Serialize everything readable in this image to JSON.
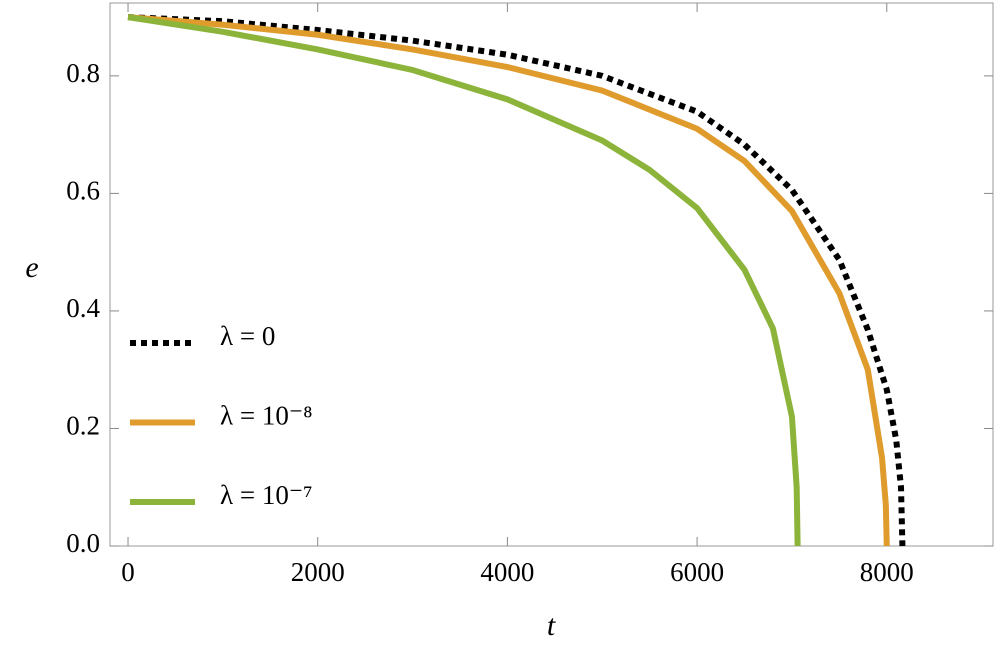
{
  "chart_data": {
    "type": "line",
    "xlabel": "t",
    "ylabel": "e",
    "xlim": [
      -190,
      9120
    ],
    "ylim": [
      0,
      0.924
    ],
    "xticks": [
      0,
      2000,
      4000,
      6000,
      8000
    ],
    "yticks": [
      {
        "value": 0,
        "label": "0.0"
      },
      0.2,
      0.4,
      0.6,
      0.8
    ],
    "legend": "left",
    "series": [
      {
        "name": "λ = 0",
        "color": "#000000",
        "dashed": true,
        "x": [
          0,
          1000,
          2000,
          3000,
          4000,
          5000,
          6000,
          6500,
          7000,
          7500,
          7800,
          8000,
          8100,
          8150,
          8165
        ],
        "values": [
          0.9,
          0.893,
          0.878,
          0.86,
          0.836,
          0.8,
          0.739,
          0.683,
          0.606,
          0.487,
          0.368,
          0.266,
          0.18,
          0.1,
          0
        ]
      },
      {
        "name": "λ = 10⁻⁸",
        "color": "#e09b2d",
        "dashed": false,
        "x": [
          0,
          1000,
          2000,
          3000,
          4000,
          5000,
          6000,
          6500,
          7000,
          7500,
          7800,
          7950,
          7990,
          8000
        ],
        "values": [
          0.9,
          0.887,
          0.87,
          0.845,
          0.815,
          0.775,
          0.71,
          0.655,
          0.57,
          0.43,
          0.3,
          0.15,
          0.07,
          0
        ]
      },
      {
        "name": "λ = 10⁻⁷",
        "color": "#8cb43a",
        "dashed": false,
        "x": [
          0,
          1000,
          2000,
          3000,
          4000,
          5000,
          5500,
          6000,
          6500,
          6800,
          7000,
          7050,
          7060
        ],
        "values": [
          0.9,
          0.875,
          0.845,
          0.81,
          0.76,
          0.69,
          0.64,
          0.575,
          0.47,
          0.37,
          0.22,
          0.1,
          0
        ]
      }
    ]
  }
}
